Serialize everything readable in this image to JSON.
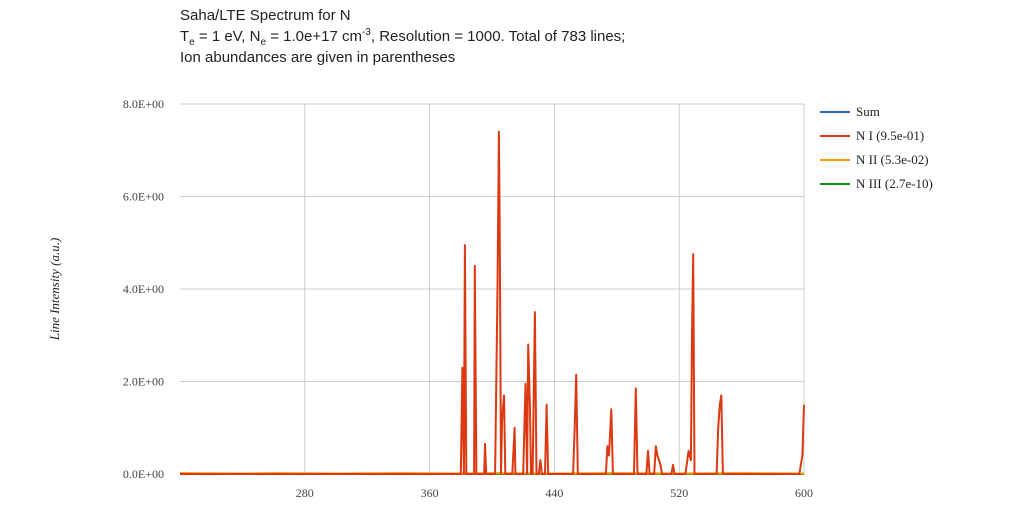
{
  "title": {
    "line1": "Saha/LTE Spectrum for N",
    "line2": {
      "te_prefix": "T",
      "te_sub": "e",
      "te_value": " = 1 eV, N",
      "ne_sub": "e",
      "ne_value": " = 1.0e+17 cm",
      "ne_sup": "-3",
      "rest": ", Resolution = 1000. Total of 783 lines;"
    },
    "line3": "Ion abundances are given in parentheses"
  },
  "chart_data": {
    "type": "line",
    "xlabel": "",
    "ylabel": "Line Intensity (a.u.)",
    "xlim": [
      200,
      600
    ],
    "ylim": [
      0,
      8
    ],
    "x_ticks": [
      280,
      360,
      440,
      520,
      600
    ],
    "x_tick_labels": [
      "280",
      "360",
      "440",
      "520",
      "600"
    ],
    "y_ticks": [
      0,
      2,
      4,
      6,
      8
    ],
    "y_tick_labels": [
      "0.0E+00",
      "2.0E+00",
      "4.0E+00",
      "6.0E+00",
      "8.0E+00"
    ],
    "grid": true,
    "legend_position": "right",
    "series": [
      {
        "name": "Sum",
        "color": "#3366cc",
        "points": [
          [
            200,
            0
          ],
          [
            600,
            0
          ]
        ]
      },
      {
        "name": "N III (2.7e-10)",
        "color": "#109618",
        "points": [
          [
            200,
            0
          ],
          [
            600,
            0
          ]
        ]
      },
      {
        "name": "N II (5.3e-02)",
        "color": "#ff9900",
        "points": [
          [
            200,
            0.02
          ],
          [
            240,
            0.01
          ],
          [
            260,
            0.02
          ],
          [
            300,
            0.01
          ],
          [
            340,
            0.02
          ],
          [
            380,
            0.01
          ],
          [
            400,
            0.02
          ],
          [
            440,
            0.01
          ],
          [
            480,
            0.02
          ],
          [
            520,
            0.01
          ],
          [
            560,
            0.02
          ],
          [
            600,
            0.01
          ]
        ]
      },
      {
        "name": "N I (9.5e-01)",
        "color": "#dc3912",
        "points": [
          [
            200,
            0
          ],
          [
            380,
            0
          ],
          [
            381,
            2.3
          ],
          [
            382,
            0
          ],
          [
            382.6,
            4.95
          ],
          [
            383.5,
            0
          ],
          [
            388.5,
            0
          ],
          [
            389,
            4.5
          ],
          [
            390,
            0
          ],
          [
            395,
            0
          ],
          [
            395.5,
            0.65
          ],
          [
            396.3,
            0
          ],
          [
            402,
            0
          ],
          [
            403.5,
            4
          ],
          [
            404.4,
            7.4
          ],
          [
            405,
            5
          ],
          [
            405.8,
            0
          ],
          [
            406.5,
            1.2
          ],
          [
            407.7,
            1.7
          ],
          [
            408.5,
            0
          ],
          [
            413,
            0
          ],
          [
            414.5,
            1
          ],
          [
            415,
            0
          ],
          [
            420,
            0
          ],
          [
            421.5,
            1.95
          ],
          [
            422.5,
            0
          ],
          [
            423.2,
            2.8
          ],
          [
            424.3,
            1.5
          ],
          [
            425,
            0
          ],
          [
            426,
            0
          ],
          [
            427.5,
            3.5
          ],
          [
            428.5,
            0
          ],
          [
            430,
            0
          ],
          [
            431,
            0.3
          ],
          [
            432,
            0
          ],
          [
            434,
            0
          ],
          [
            435,
            1.5
          ],
          [
            436,
            0
          ],
          [
            452,
            0
          ],
          [
            453,
            1
          ],
          [
            454,
            2.15
          ],
          [
            455,
            0
          ],
          [
            473,
            0
          ],
          [
            474,
            0.6
          ],
          [
            475,
            0.4
          ],
          [
            476.5,
            1.4
          ],
          [
            477.5,
            0
          ],
          [
            491,
            0
          ],
          [
            492.2,
            1.85
          ],
          [
            493.3,
            0
          ],
          [
            499,
            0
          ],
          [
            500,
            0.5
          ],
          [
            501,
            0
          ],
          [
            504,
            0
          ],
          [
            505,
            0.6
          ],
          [
            506,
            0.4
          ],
          [
            507,
            0.3
          ],
          [
            508,
            0.2
          ],
          [
            509,
            0
          ],
          [
            515,
            0
          ],
          [
            516,
            0.2
          ],
          [
            517,
            0
          ],
          [
            524,
            0
          ],
          [
            526,
            0.5
          ],
          [
            527.5,
            0.3
          ],
          [
            528.2,
            3
          ],
          [
            529,
            4.75
          ],
          [
            529.8,
            0
          ],
          [
            544,
            0
          ],
          [
            545,
            1
          ],
          [
            546,
            1.5
          ],
          [
            547,
            1.7
          ],
          [
            548,
            0
          ],
          [
            597,
            0
          ],
          [
            599,
            0.4
          ],
          [
            600,
            1.5
          ]
        ]
      }
    ]
  },
  "legend": [
    {
      "label": "Sum",
      "color": "#3366cc"
    },
    {
      "label": "N I (9.5e-01)",
      "color": "#dc3912"
    },
    {
      "label": "N II (5.3e-02)",
      "color": "#ff9900"
    },
    {
      "label": "N III (2.7e-10)",
      "color": "#109618"
    }
  ]
}
